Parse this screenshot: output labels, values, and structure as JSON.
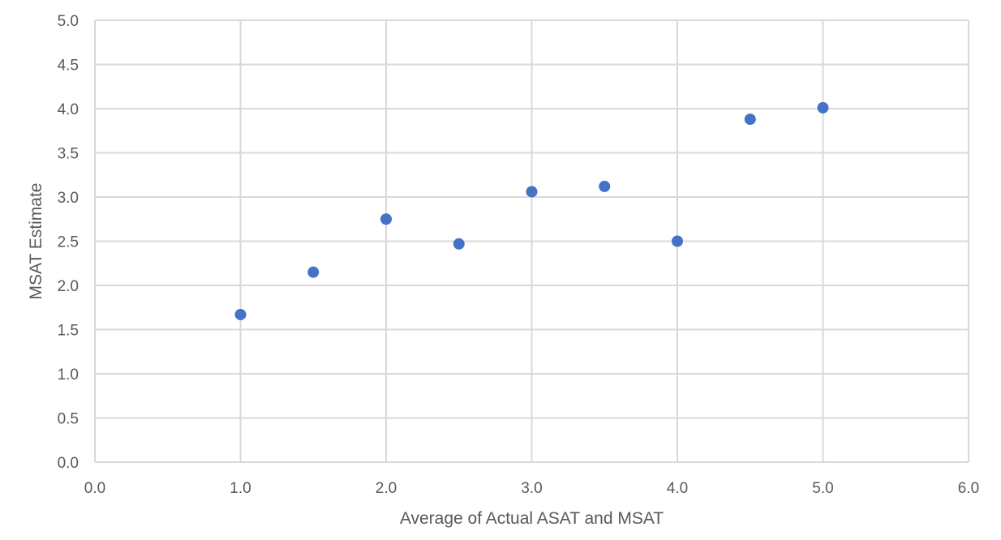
{
  "chart_data": {
    "type": "scatter",
    "title": "",
    "xlabel": "Average of Actual ASAT and MSAT",
    "ylabel": "MSAT Estimate",
    "xlim": [
      0,
      6
    ],
    "ylim": [
      0,
      5
    ],
    "x_ticks": [
      "0.0",
      "1.0",
      "2.0",
      "3.0",
      "4.0",
      "5.0",
      "6.0"
    ],
    "y_ticks": [
      "0.0",
      "0.5",
      "1.0",
      "1.5",
      "2.0",
      "2.5",
      "3.0",
      "3.5",
      "4.0",
      "4.5",
      "5.0"
    ],
    "grid": true,
    "legend": "none",
    "marker_color": "#4472c4",
    "points": [
      {
        "x": 1.0,
        "y": 1.67
      },
      {
        "x": 1.5,
        "y": 2.15
      },
      {
        "x": 2.0,
        "y": 2.75
      },
      {
        "x": 2.5,
        "y": 2.47
      },
      {
        "x": 3.0,
        "y": 3.06
      },
      {
        "x": 3.5,
        "y": 3.12
      },
      {
        "x": 4.0,
        "y": 2.5
      },
      {
        "x": 4.5,
        "y": 3.88
      },
      {
        "x": 5.0,
        "y": 4.01
      }
    ]
  }
}
